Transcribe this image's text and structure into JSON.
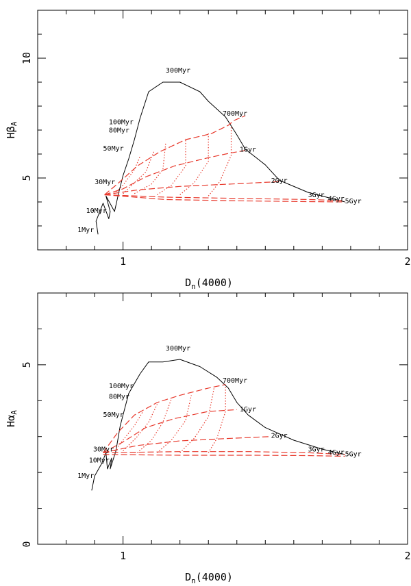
{
  "chart_data": [
    {
      "type": "line",
      "xlabel": "D",
      "xlabel_sub": "n",
      "xlabel_tail": "(4000)",
      "ylabel": "Hβ",
      "ylabel_sub": "A",
      "xlim": [
        0.7,
        2.0
      ],
      "ylim": [
        2.0,
        12.0
      ],
      "x_ticks": [
        {
          "value": 1,
          "label": "1"
        },
        {
          "value": 2,
          "label": "2"
        }
      ],
      "y_ticks": [
        {
          "value": 5,
          "label": "5"
        },
        {
          "value": 10,
          "label": "10"
        }
      ],
      "grid": false,
      "series": [
        {
          "color": "#000000",
          "style": "solid",
          "points": [
            [
              0.912,
              2.65
            ],
            [
              0.905,
              3.2
            ],
            [
              0.93,
              3.95
            ],
            [
              0.95,
              3.3
            ],
            [
              0.955,
              3.6
            ],
            [
              0.94,
              4.25
            ],
            [
              0.97,
              3.6
            ],
            [
              0.985,
              4.4
            ],
            [
              1.0,
              5.1
            ],
            [
              1.02,
              5.8
            ],
            [
              1.04,
              6.6
            ],
            [
              1.06,
              7.5
            ],
            [
              1.09,
              8.6
            ],
            [
              1.14,
              9.0
            ],
            [
              1.2,
              9.0
            ],
            [
              1.27,
              8.6
            ],
            [
              1.3,
              8.2
            ],
            [
              1.36,
              7.55
            ],
            [
              1.4,
              6.8
            ],
            [
              1.43,
              6.2
            ],
            [
              1.5,
              5.55
            ],
            [
              1.55,
              4.9
            ],
            [
              1.65,
              4.4
            ],
            [
              1.78,
              4.0
            ]
          ]
        },
        {
          "color": "#e8392c",
          "style": "dashed",
          "points": [
            [
              0.935,
              4.3
            ],
            [
              0.98,
              4.75
            ],
            [
              1.05,
              5.5
            ],
            [
              1.13,
              6.1
            ],
            [
              1.22,
              6.6
            ],
            [
              1.31,
              6.85
            ],
            [
              1.37,
              7.2
            ],
            [
              1.39,
              7.4
            ],
            [
              1.43,
              7.6
            ]
          ]
        },
        {
          "color": "#e8392c",
          "style": "dashed",
          "points": [
            [
              0.935,
              4.3
            ],
            [
              1.0,
              4.55
            ],
            [
              1.08,
              5.05
            ],
            [
              1.18,
              5.5
            ],
            [
              1.3,
              5.85
            ],
            [
              1.38,
              6.05
            ],
            [
              1.43,
              6.15
            ]
          ]
        },
        {
          "color": "#e8392c",
          "style": "dashed",
          "points": [
            [
              0.935,
              4.3
            ],
            [
              1.05,
              4.5
            ],
            [
              1.2,
              4.65
            ],
            [
              1.38,
              4.75
            ],
            [
              1.55,
              4.85
            ]
          ]
        },
        {
          "color": "#e8392c",
          "style": "dashed",
          "points": [
            [
              0.935,
              4.3
            ],
            [
              1.15,
              4.2
            ],
            [
              1.4,
              4.15
            ],
            [
              1.66,
              4.1
            ],
            [
              1.78,
              4.05
            ]
          ]
        },
        {
          "color": "#e8392c",
          "style": "dashed",
          "points": [
            [
              0.935,
              4.3
            ],
            [
              1.15,
              4.1
            ],
            [
              1.4,
              4.05
            ],
            [
              1.6,
              4.02
            ],
            [
              1.78,
              4.0
            ]
          ]
        },
        {
          "color": "#e8392c",
          "style": "dotted",
          "points": [
            [
              0.97,
              4.35
            ],
            [
              1.0,
              4.7
            ],
            [
              1.04,
              5.35
            ],
            [
              1.06,
              5.9
            ]
          ]
        },
        {
          "color": "#e8392c",
          "style": "dotted",
          "points": [
            [
              1.0,
              4.35
            ],
            [
              1.04,
              4.8
            ],
            [
              1.08,
              5.25
            ],
            [
              1.11,
              6.15
            ]
          ]
        },
        {
          "color": "#e8392c",
          "style": "dotted",
          "points": [
            [
              1.04,
              4.35
            ],
            [
              1.1,
              4.75
            ],
            [
              1.14,
              5.35
            ],
            [
              1.15,
              6.45
            ]
          ]
        },
        {
          "color": "#e8392c",
          "style": "dotted",
          "points": [
            [
              1.12,
              4.3
            ],
            [
              1.17,
              4.7
            ],
            [
              1.22,
              5.5
            ],
            [
              1.22,
              6.65
            ]
          ]
        },
        {
          "color": "#e8392c",
          "style": "dotted",
          "points": [
            [
              1.2,
              4.3
            ],
            [
              1.25,
              4.8
            ],
            [
              1.3,
              5.7
            ],
            [
              1.3,
              6.9
            ]
          ]
        },
        {
          "color": "#e8392c",
          "style": "dotted",
          "points": [
            [
              1.3,
              4.25
            ],
            [
              1.34,
              4.85
            ],
            [
              1.38,
              5.95
            ],
            [
              1.38,
              7.15
            ]
          ]
        }
      ],
      "annotations": [
        {
          "text": "300Myr",
          "x": 1.15,
          "y": 9.4
        },
        {
          "text": "700Myr",
          "x": 1.35,
          "y": 7.6
        },
        {
          "text": "100Myr",
          "x": 0.95,
          "y": 7.25
        },
        {
          "text": "80Myr",
          "x": 0.95,
          "y": 6.9
        },
        {
          "text": "1Gyr",
          "x": 1.41,
          "y": 6.1
        },
        {
          "text": "50Myr",
          "x": 0.93,
          "y": 6.15
        },
        {
          "text": "2Gyr",
          "x": 1.52,
          "y": 4.8
        },
        {
          "text": "30Myr",
          "x": 0.9,
          "y": 4.75
        },
        {
          "text": "3Gyr",
          "x": 1.65,
          "y": 4.2
        },
        {
          "text": "4Gyr",
          "x": 1.72,
          "y": 4.05
        },
        {
          "text": "5Gyr",
          "x": 1.78,
          "y": 3.95
        },
        {
          "text": "10Myr",
          "x": 0.87,
          "y": 3.55
        },
        {
          "text": "1Myr",
          "x": 0.84,
          "y": 2.75
        }
      ]
    },
    {
      "type": "line",
      "xlabel": "D",
      "xlabel_sub": "n",
      "xlabel_tail": "(4000)",
      "ylabel": "Hα",
      "ylabel_sub": "A",
      "xlim": [
        0.7,
        2.0
      ],
      "ylim": [
        0.0,
        7.0
      ],
      "x_ticks": [
        {
          "value": 1,
          "label": "1"
        },
        {
          "value": 2,
          "label": "2"
        }
      ],
      "y_ticks": [
        {
          "value": 0,
          "label": "0"
        },
        {
          "value": 5,
          "label": "5"
        }
      ],
      "grid": false,
      "series": [
        {
          "color": "#000000",
          "style": "solid",
          "points": [
            [
              0.89,
              1.5
            ],
            [
              0.9,
              1.9
            ],
            [
              0.925,
              2.25
            ],
            [
              0.94,
              2.55
            ],
            [
              0.945,
              2.1
            ],
            [
              0.96,
              2.4
            ],
            [
              0.955,
              2.1
            ],
            [
              0.975,
              2.6
            ],
            [
              0.99,
              3.3
            ],
            [
              1.0,
              3.6
            ],
            [
              1.02,
              4.2
            ],
            [
              1.06,
              4.75
            ],
            [
              1.09,
              5.08
            ],
            [
              1.14,
              5.08
            ],
            [
              1.2,
              5.15
            ],
            [
              1.27,
              4.95
            ],
            [
              1.33,
              4.65
            ],
            [
              1.37,
              4.35
            ],
            [
              1.4,
              3.95
            ],
            [
              1.44,
              3.6
            ],
            [
              1.5,
              3.25
            ],
            [
              1.6,
              2.9
            ],
            [
              1.7,
              2.65
            ],
            [
              1.78,
              2.5
            ]
          ]
        },
        {
          "color": "#e8392c",
          "style": "dashed",
          "points": [
            [
              0.93,
              2.55
            ],
            [
              0.98,
              3.1
            ],
            [
              1.04,
              3.6
            ],
            [
              1.12,
              3.95
            ],
            [
              1.2,
              4.15
            ],
            [
              1.3,
              4.35
            ],
            [
              1.36,
              4.45
            ]
          ]
        },
        {
          "color": "#e8392c",
          "style": "dashed",
          "points": [
            [
              0.93,
              2.55
            ],
            [
              1.0,
              2.85
            ],
            [
              1.08,
              3.25
            ],
            [
              1.18,
              3.5
            ],
            [
              1.3,
              3.7
            ],
            [
              1.4,
              3.75
            ]
          ]
        },
        {
          "color": "#e8392c",
          "style": "dashed",
          "points": [
            [
              0.93,
              2.55
            ],
            [
              1.05,
              2.75
            ],
            [
              1.2,
              2.88
            ],
            [
              1.38,
              2.95
            ],
            [
              1.52,
              3.0
            ]
          ]
        },
        {
          "color": "#e8392c",
          "style": "dashed",
          "points": [
            [
              0.93,
              2.55
            ],
            [
              1.2,
              2.58
            ],
            [
              1.45,
              2.58
            ],
            [
              1.65,
              2.55
            ],
            [
              1.78,
              2.5
            ]
          ]
        },
        {
          "color": "#e8392c",
          "style": "dashed",
          "points": [
            [
              0.93,
              2.5
            ],
            [
              1.2,
              2.48
            ],
            [
              1.45,
              2.48
            ],
            [
              1.65,
              2.47
            ],
            [
              1.78,
              2.45
            ]
          ]
        },
        {
          "color": "#e8392c",
          "style": "dotted",
          "points": [
            [
              0.97,
              2.6
            ],
            [
              1.0,
              2.9
            ],
            [
              1.04,
              3.3
            ],
            [
              1.07,
              3.7
            ]
          ]
        },
        {
          "color": "#e8392c",
          "style": "dotted",
          "points": [
            [
              1.0,
              2.6
            ],
            [
              1.05,
              3.0
            ],
            [
              1.09,
              3.4
            ],
            [
              1.12,
              3.9
            ]
          ]
        },
        {
          "color": "#e8392c",
          "style": "dotted",
          "points": [
            [
              1.05,
              2.55
            ],
            [
              1.1,
              2.9
            ],
            [
              1.14,
              3.4
            ],
            [
              1.17,
              4.05
            ]
          ]
        },
        {
          "color": "#e8392c",
          "style": "dotted",
          "points": [
            [
              1.12,
              2.55
            ],
            [
              1.17,
              2.9
            ],
            [
              1.22,
              3.45
            ],
            [
              1.24,
              4.15
            ]
          ]
        },
        {
          "color": "#e8392c",
          "style": "dotted",
          "points": [
            [
              1.2,
              2.55
            ],
            [
              1.25,
              2.95
            ],
            [
              1.3,
              3.55
            ],
            [
              1.32,
              4.35
            ]
          ]
        },
        {
          "color": "#e8392c",
          "style": "dotted",
          "points": [
            [
              1.3,
              2.55
            ],
            [
              1.33,
              2.95
            ],
            [
              1.36,
              3.7
            ],
            [
              1.36,
              4.45
            ]
          ]
        }
      ],
      "annotations": [
        {
          "text": "300Myr",
          "x": 1.15,
          "y": 5.4
        },
        {
          "text": "700Myr",
          "x": 1.35,
          "y": 4.5
        },
        {
          "text": "100Myr",
          "x": 0.95,
          "y": 4.35
        },
        {
          "text": "80Myr",
          "x": 0.95,
          "y": 4.05
        },
        {
          "text": "50Myr",
          "x": 0.93,
          "y": 3.55
        },
        {
          "text": "1Gyr",
          "x": 1.41,
          "y": 3.7
        },
        {
          "text": "2Gyr",
          "x": 1.52,
          "y": 2.97
        },
        {
          "text": "30Myr",
          "x": 0.895,
          "y": 2.58
        },
        {
          "text": "10Myr",
          "x": 0.88,
          "y": 2.28
        },
        {
          "text": "3Gyr",
          "x": 1.65,
          "y": 2.58
        },
        {
          "text": "4Gyr",
          "x": 1.72,
          "y": 2.5
        },
        {
          "text": "5Gyr",
          "x": 1.78,
          "y": 2.45
        },
        {
          "text": "1Myr",
          "x": 0.84,
          "y": 1.85
        }
      ]
    }
  ]
}
